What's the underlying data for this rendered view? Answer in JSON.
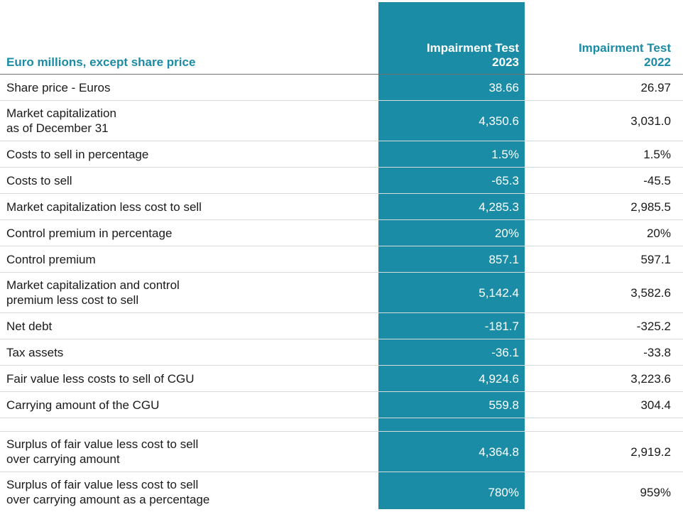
{
  "header": {
    "label": "Euro millions, except share price",
    "col_2023": "Impairment Test\n2023",
    "col_2022": "Impairment Test\n2022"
  },
  "rows": [
    {
      "label": "Share price - Euros",
      "v2023": "38.66",
      "v2022": "26.97"
    },
    {
      "label": "Market capitalization\nas of December 31",
      "v2023": "4,350.6",
      "v2022": "3,031.0"
    },
    {
      "label": "Costs to sell in percentage",
      "v2023": "1.5%",
      "v2022": "1.5%"
    },
    {
      "label": "Costs to sell",
      "v2023": "-65.3",
      "v2022": "-45.5"
    },
    {
      "label": "Market capitalization less cost to sell",
      "v2023": "4,285.3",
      "v2022": "2,985.5"
    },
    {
      "label": "Control premium in percentage",
      "v2023": "20%",
      "v2022": "20%"
    },
    {
      "label": "Control premium",
      "v2023": "857.1",
      "v2022": "597.1"
    },
    {
      "label": "Market capitalization and control\npremium less cost to sell",
      "v2023": "5,142.4",
      "v2022": "3,582.6"
    },
    {
      "label": "Net debt",
      "v2023": "-181.7",
      "v2022": "-325.2"
    },
    {
      "label": "Tax assets",
      "v2023": "-36.1",
      "v2022": "-33.8"
    },
    {
      "label": "Fair value less costs to sell of CGU",
      "v2023": "4,924.6",
      "v2022": "3,223.6"
    },
    {
      "label": "Carrying amount of the CGU",
      "v2023": "559.8",
      "v2022": "304.4"
    },
    {
      "label": "",
      "v2023": "",
      "v2022": ""
    },
    {
      "label": "Surplus of fair value less cost to sell\nover carrying amount",
      "v2023": "4,364.8",
      "v2022": "2,919.2"
    },
    {
      "label": "Surplus of fair value less cost to sell\nover carrying amount as a percentage",
      "v2023": "780%",
      "v2022": "959%"
    }
  ],
  "colors": {
    "accent": "#1a8ca6",
    "highlight_text": "#ffffff"
  }
}
